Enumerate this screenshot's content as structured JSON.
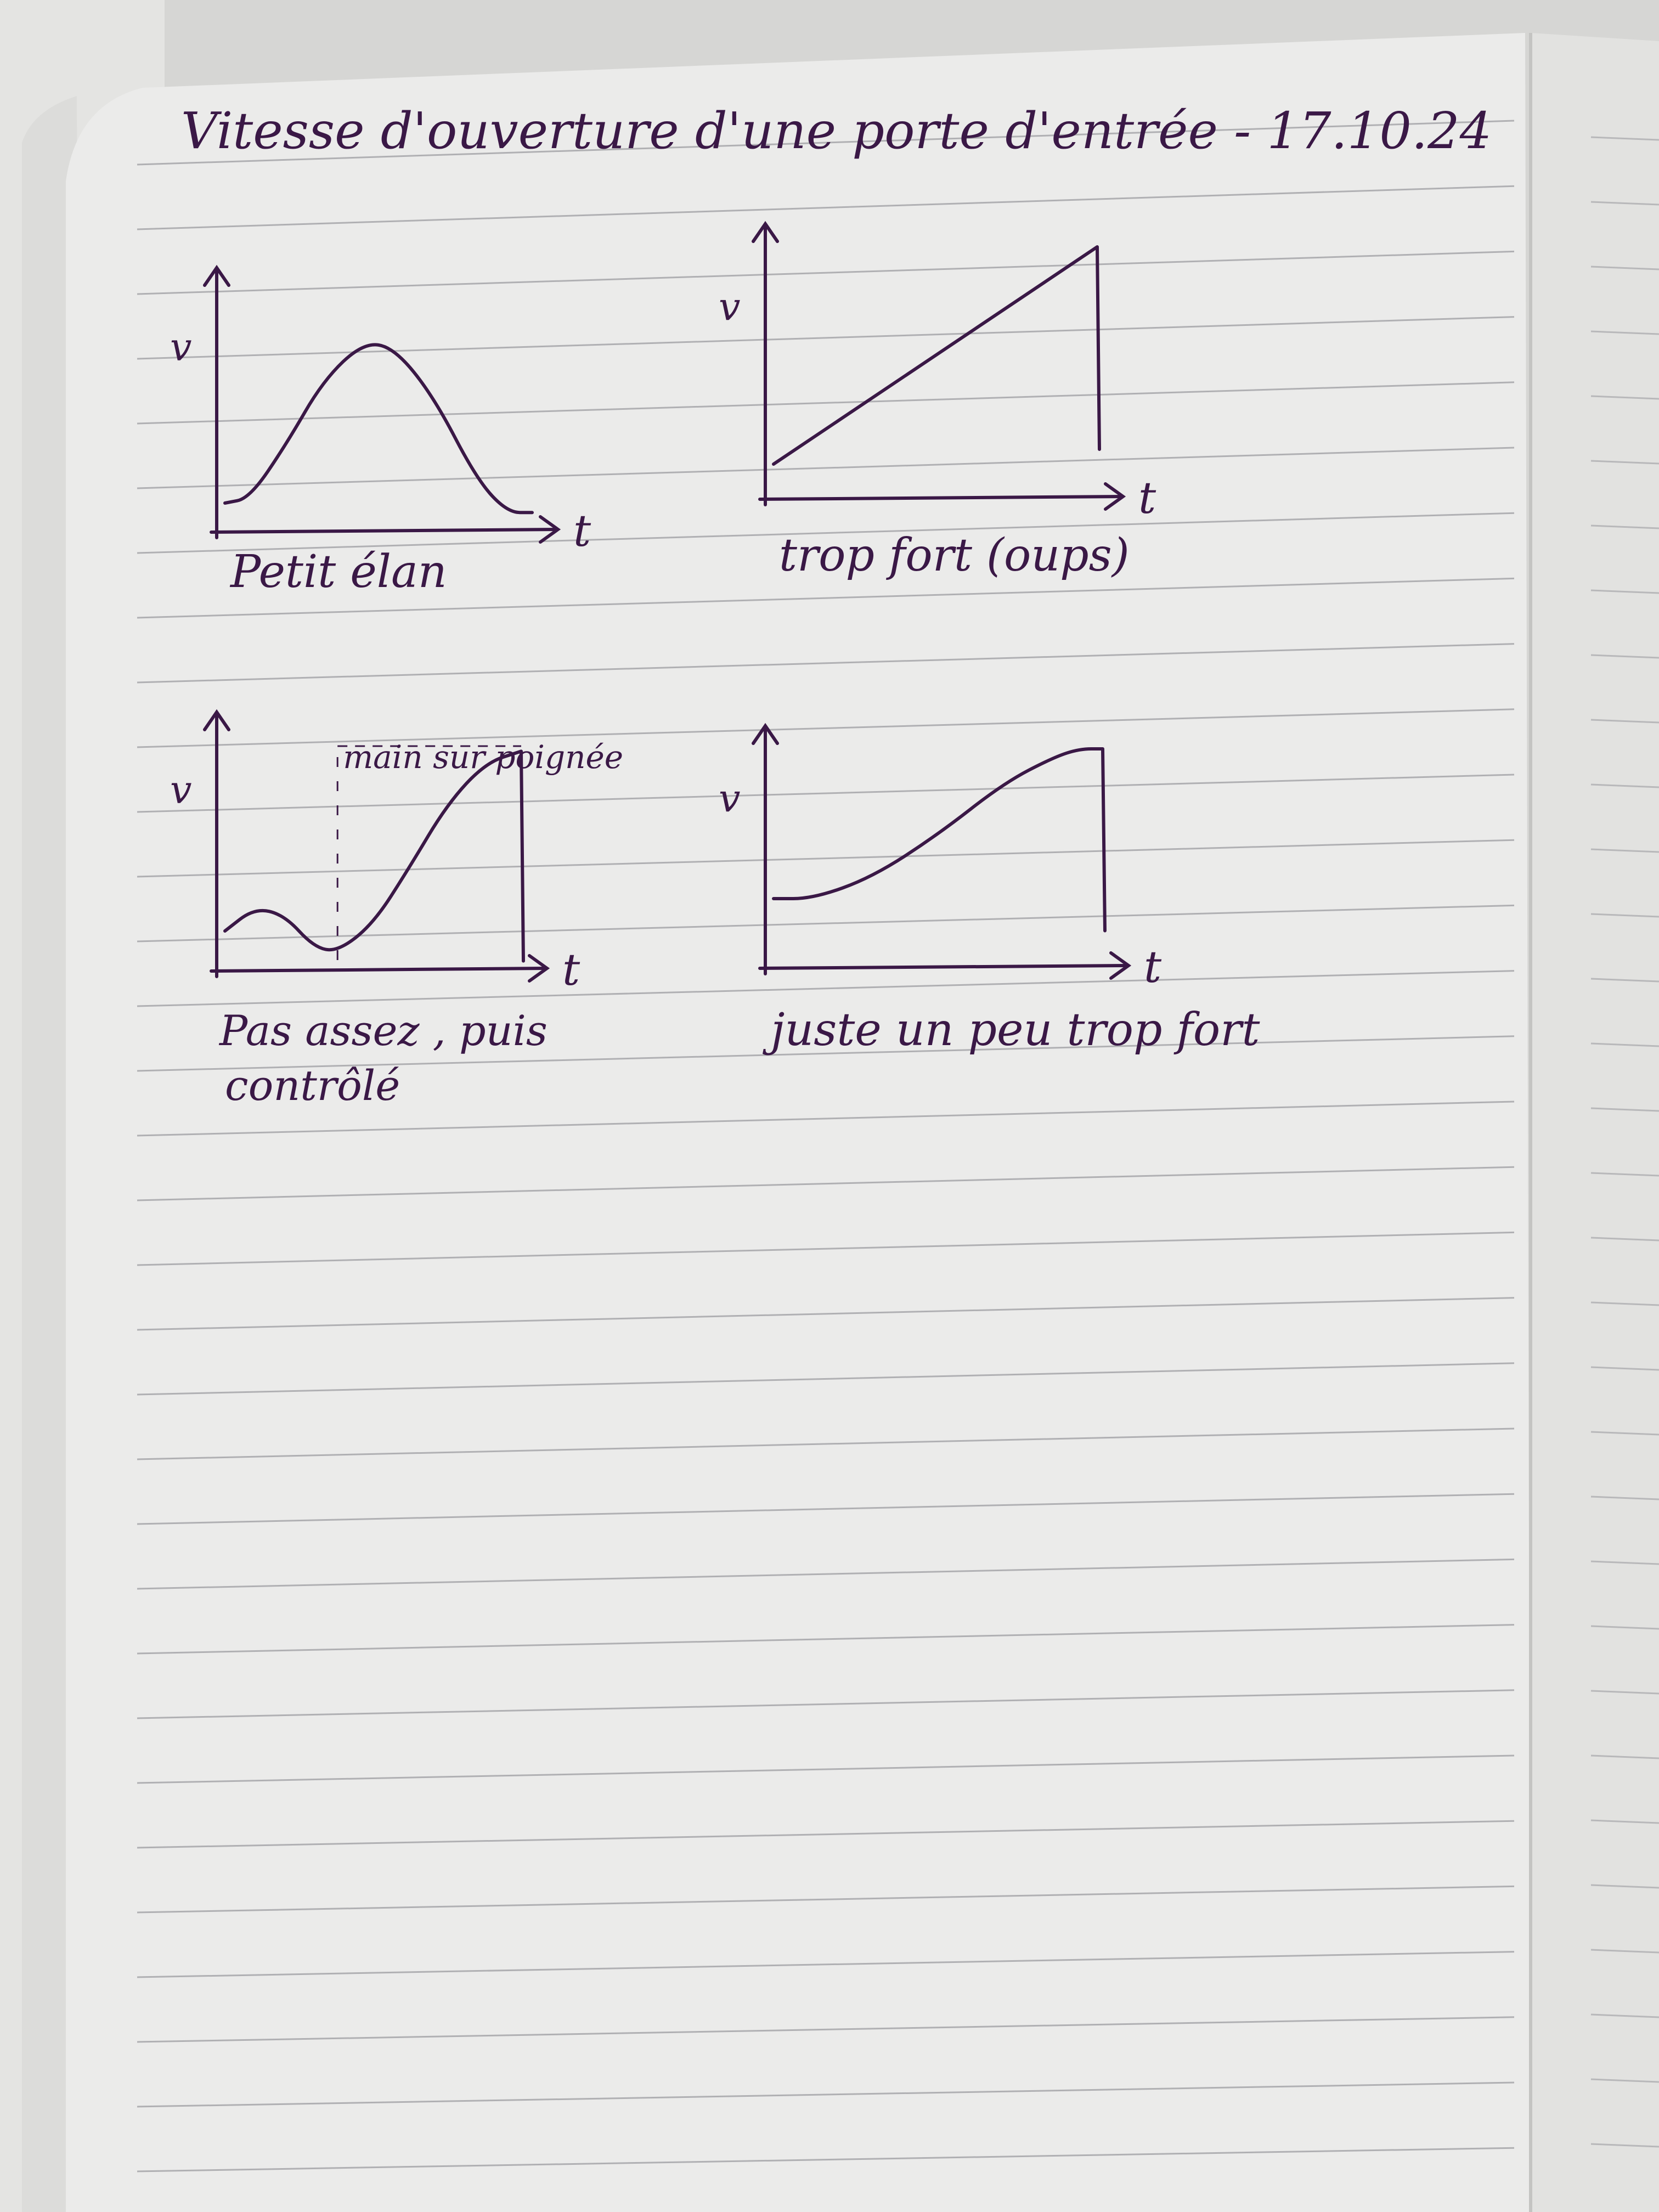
{
  "page": {
    "title": "Vitesse d'ouverture d'une porte d'entrée - 17.10.24",
    "colors": {
      "ink": "#3a1846",
      "paper": "#ebebea",
      "rule": "#9c9ca0",
      "desk": "#d8d8d6"
    }
  },
  "chart_data": [
    {
      "type": "line",
      "title": "Petit élan",
      "xlabel": "t",
      "ylabel": "v",
      "x": [
        0,
        0.08,
        0.2,
        0.32,
        0.45,
        0.55,
        0.68,
        0.82,
        0.92,
        1.0
      ],
      "y": [
        0.1,
        0.12,
        0.35,
        0.62,
        0.78,
        0.76,
        0.55,
        0.2,
        0.06,
        0.06
      ],
      "drop_at_end": false
    },
    {
      "type": "line",
      "title": "trop fort (oups)",
      "xlabel": "t",
      "ylabel": "v",
      "x": [
        0,
        1.0
      ],
      "y": [
        0.12,
        1.0
      ],
      "drop_at_end": true,
      "drop_to": 0.18
    },
    {
      "type": "line",
      "title": "Pas assez , puis contrôlé",
      "annotation": "main sur poignée",
      "xlabel": "t",
      "ylabel": "v",
      "x": [
        0,
        0.1,
        0.2,
        0.3,
        0.38,
        0.5,
        0.62,
        0.75,
        0.88,
        1.0
      ],
      "y": [
        0.15,
        0.25,
        0.22,
        0.08,
        0.06,
        0.18,
        0.42,
        0.7,
        0.88,
        0.93
      ],
      "drop_at_end": true,
      "drop_to": 0.02
    },
    {
      "type": "line",
      "title": "juste un peu trop fort",
      "xlabel": "t",
      "ylabel": "v",
      "x": [
        0,
        0.12,
        0.3,
        0.5,
        0.7,
        0.85,
        0.93,
        1.0
      ],
      "y": [
        0.3,
        0.3,
        0.4,
        0.6,
        0.84,
        0.96,
        1.0,
        1.0
      ],
      "drop_at_end": true,
      "drop_to": 0.15
    }
  ]
}
